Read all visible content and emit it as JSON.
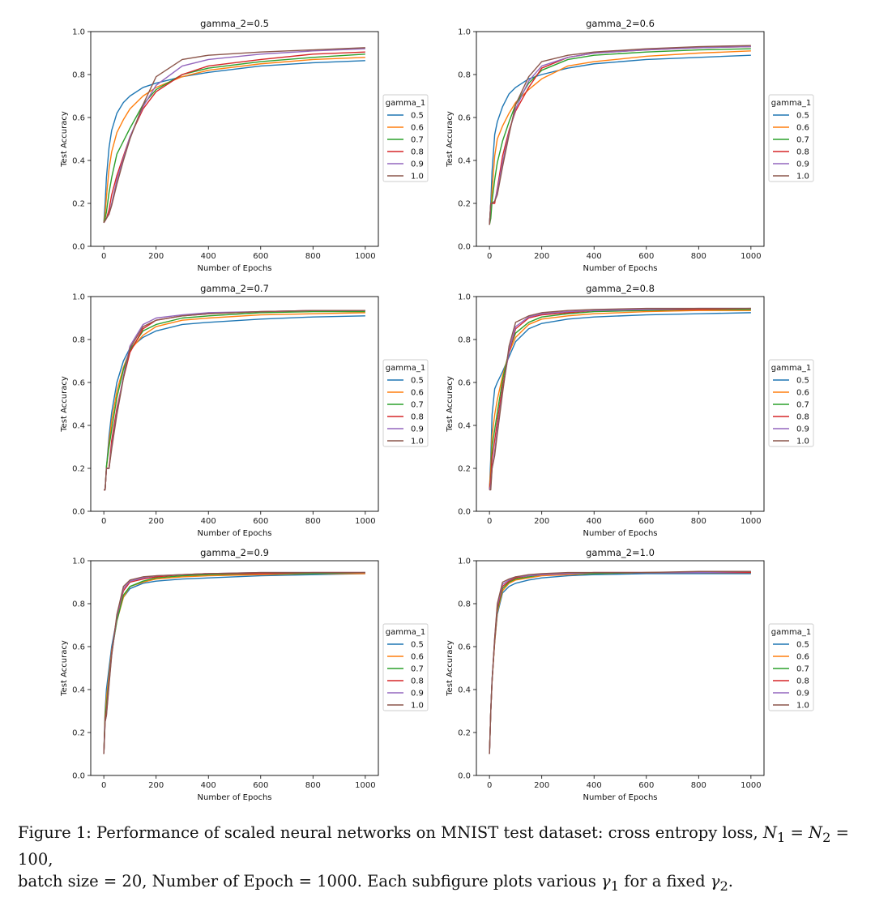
{
  "figure": {
    "legend_title": "gamma_1",
    "xlabel": "Number of Epochs",
    "ylabel": "Test Accuracy",
    "colors": [
      "#1f77b4",
      "#ff7f0e",
      "#2ca02c",
      "#d62728",
      "#9467bd",
      "#8c564b"
    ]
  },
  "caption": {
    "p1": "Figure 1: Performance of scaled neural networks on MNIST test dataset: cross entropy loss, ",
    "m1": "N",
    "s1": "1",
    "p2": " = ",
    "m2": "N",
    "s2": "2",
    "p3": " = 100,",
    "p4": "batch size = 20, Number of Epoch = 1000. Each subfigure plots various ",
    "m3": "γ",
    "s3": "1",
    "p5": " for a fixed ",
    "m4": "γ",
    "s4": "2",
    "p6": "."
  },
  "chart_data": [
    {
      "type": "line",
      "title": "gamma_2=0.5",
      "xlabel": "Number of Epochs",
      "ylabel": "Test Accuracy",
      "xlim": [
        -50,
        1050
      ],
      "ylim": [
        0,
        1
      ],
      "xticks": [
        0,
        200,
        400,
        600,
        800,
        1000
      ],
      "yticks": [
        0.0,
        0.2,
        0.4,
        0.6,
        0.8,
        1.0
      ],
      "legend": {
        "title": "gamma_1",
        "position": "right-outside"
      },
      "x": [
        0,
        5,
        10,
        20,
        30,
        50,
        75,
        100,
        150,
        200,
        300,
        400,
        600,
        800,
        1000
      ],
      "series": [
        {
          "name": "0.5",
          "values": [
            0.11,
            0.2,
            0.32,
            0.46,
            0.54,
            0.62,
            0.67,
            0.7,
            0.74,
            0.76,
            0.79,
            0.81,
            0.84,
            0.855,
            0.865
          ]
        },
        {
          "name": "0.6",
          "values": [
            0.11,
            0.15,
            0.23,
            0.36,
            0.44,
            0.53,
            0.59,
            0.64,
            0.7,
            0.74,
            0.79,
            0.82,
            0.85,
            0.87,
            0.88
          ]
        },
        {
          "name": "0.7",
          "values": [
            0.11,
            0.13,
            0.16,
            0.25,
            0.32,
            0.43,
            0.49,
            0.55,
            0.66,
            0.73,
            0.8,
            0.83,
            0.86,
            0.88,
            0.895
          ]
        },
        {
          "name": "0.8",
          "values": [
            0.11,
            0.12,
            0.13,
            0.17,
            0.24,
            0.33,
            0.42,
            0.51,
            0.64,
            0.72,
            0.8,
            0.84,
            0.87,
            0.895,
            0.905
          ]
        },
        {
          "name": "0.9",
          "values": [
            0.11,
            0.12,
            0.13,
            0.15,
            0.2,
            0.31,
            0.41,
            0.51,
            0.65,
            0.75,
            0.84,
            0.87,
            0.895,
            0.91,
            0.92
          ]
        },
        {
          "name": "1.0",
          "values": [
            0.11,
            0.12,
            0.13,
            0.15,
            0.19,
            0.29,
            0.4,
            0.5,
            0.66,
            0.79,
            0.87,
            0.89,
            0.905,
            0.915,
            0.925
          ]
        }
      ]
    },
    {
      "type": "line",
      "title": "gamma_2=0.6",
      "xlabel": "Number of Epochs",
      "ylabel": "Test Accuracy",
      "xlim": [
        -50,
        1050
      ],
      "ylim": [
        0,
        1
      ],
      "xticks": [
        0,
        200,
        400,
        600,
        800,
        1000
      ],
      "yticks": [
        0.0,
        0.2,
        0.4,
        0.6,
        0.8,
        1.0
      ],
      "legend": {
        "title": "gamma_1",
        "position": "right-outside"
      },
      "x": [
        0,
        5,
        10,
        20,
        30,
        50,
        75,
        100,
        150,
        200,
        300,
        400,
        600,
        800,
        1000
      ],
      "series": [
        {
          "name": "0.5",
          "values": [
            0.1,
            0.2,
            0.35,
            0.52,
            0.58,
            0.65,
            0.71,
            0.74,
            0.78,
            0.8,
            0.83,
            0.85,
            0.87,
            0.88,
            0.89
          ]
        },
        {
          "name": "0.6",
          "values": [
            0.1,
            0.15,
            0.26,
            0.42,
            0.5,
            0.56,
            0.62,
            0.67,
            0.73,
            0.78,
            0.84,
            0.86,
            0.885,
            0.9,
            0.91
          ]
        },
        {
          "name": "0.7",
          "values": [
            0.1,
            0.13,
            0.21,
            0.31,
            0.39,
            0.49,
            0.58,
            0.66,
            0.76,
            0.82,
            0.87,
            0.89,
            0.905,
            0.915,
            0.92
          ]
        },
        {
          "name": "0.8",
          "values": [
            0.1,
            0.2,
            0.2,
            0.2,
            0.27,
            0.42,
            0.54,
            0.63,
            0.74,
            0.83,
            0.88,
            0.9,
            0.915,
            0.925,
            0.93
          ]
        },
        {
          "name": "0.9",
          "values": [
            0.1,
            0.2,
            0.2,
            0.21,
            0.26,
            0.39,
            0.53,
            0.64,
            0.77,
            0.84,
            0.88,
            0.9,
            0.915,
            0.925,
            0.93
          ]
        },
        {
          "name": "1.0",
          "values": [
            0.1,
            0.2,
            0.2,
            0.21,
            0.24,
            0.37,
            0.52,
            0.66,
            0.79,
            0.86,
            0.89,
            0.905,
            0.92,
            0.93,
            0.935
          ]
        }
      ]
    },
    {
      "type": "line",
      "title": "gamma_2=0.7",
      "xlabel": "Number of Epochs",
      "ylabel": "Test Accuracy",
      "xlim": [
        -50,
        1050
      ],
      "ylim": [
        0,
        1
      ],
      "xticks": [
        0,
        200,
        400,
        600,
        800,
        1000
      ],
      "yticks": [
        0.0,
        0.2,
        0.4,
        0.6,
        0.8,
        1.0
      ],
      "legend": {
        "title": "gamma_1",
        "position": "right-outside"
      },
      "x": [
        0,
        5,
        10,
        20,
        30,
        50,
        75,
        100,
        150,
        200,
        300,
        400,
        600,
        800,
        1000
      ],
      "series": [
        {
          "name": "0.5",
          "values": [
            0.1,
            0.1,
            0.2,
            0.35,
            0.46,
            0.6,
            0.7,
            0.76,
            0.81,
            0.84,
            0.87,
            0.88,
            0.895,
            0.905,
            0.91
          ]
        },
        {
          "name": "0.6",
          "values": [
            0.1,
            0.1,
            0.2,
            0.32,
            0.42,
            0.56,
            0.67,
            0.75,
            0.82,
            0.86,
            0.89,
            0.9,
            0.915,
            0.92,
            0.925
          ]
        },
        {
          "name": "0.7",
          "values": [
            0.1,
            0.1,
            0.21,
            0.3,
            0.38,
            0.53,
            0.66,
            0.75,
            0.84,
            0.87,
            0.9,
            0.91,
            0.925,
            0.93,
            0.93
          ]
        },
        {
          "name": "0.8",
          "values": [
            0.1,
            0.1,
            0.2,
            0.2,
            0.33,
            0.48,
            0.62,
            0.74,
            0.85,
            0.89,
            0.91,
            0.92,
            0.93,
            0.935,
            0.935
          ]
        },
        {
          "name": "0.9",
          "values": [
            0.1,
            0.1,
            0.2,
            0.2,
            0.3,
            0.46,
            0.63,
            0.77,
            0.87,
            0.9,
            0.915,
            0.925,
            0.93,
            0.935,
            0.935
          ]
        },
        {
          "name": "1.0",
          "values": [
            0.1,
            0.1,
            0.2,
            0.2,
            0.29,
            0.45,
            0.62,
            0.76,
            0.86,
            0.89,
            0.91,
            0.92,
            0.93,
            0.935,
            0.935
          ]
        }
      ]
    },
    {
      "type": "line",
      "title": "gamma_2=0.8",
      "xlabel": "Number of Epochs",
      "ylabel": "Test Accuracy",
      "xlim": [
        -50,
        1050
      ],
      "ylim": [
        0,
        1
      ],
      "xticks": [
        0,
        200,
        400,
        600,
        800,
        1000
      ],
      "yticks": [
        0.0,
        0.2,
        0.4,
        0.6,
        0.8,
        1.0
      ],
      "legend": {
        "title": "gamma_1",
        "position": "right-outside"
      },
      "x": [
        0,
        5,
        10,
        20,
        30,
        50,
        75,
        100,
        150,
        200,
        300,
        400,
        600,
        800,
        1000
      ],
      "series": [
        {
          "name": "0.5",
          "values": [
            0.1,
            0.25,
            0.45,
            0.57,
            0.6,
            0.65,
            0.72,
            0.79,
            0.85,
            0.875,
            0.895,
            0.905,
            0.915,
            0.92,
            0.925
          ]
        },
        {
          "name": "0.6",
          "values": [
            0.1,
            0.2,
            0.35,
            0.45,
            0.52,
            0.63,
            0.74,
            0.81,
            0.87,
            0.895,
            0.91,
            0.92,
            0.93,
            0.935,
            0.935
          ]
        },
        {
          "name": "0.7",
          "values": [
            0.1,
            0.15,
            0.3,
            0.38,
            0.46,
            0.61,
            0.75,
            0.83,
            0.88,
            0.905,
            0.92,
            0.93,
            0.935,
            0.94,
            0.94
          ]
        },
        {
          "name": "0.8",
          "values": [
            0.1,
            0.15,
            0.25,
            0.33,
            0.42,
            0.58,
            0.74,
            0.85,
            0.9,
            0.915,
            0.925,
            0.935,
            0.94,
            0.94,
            0.945
          ]
        },
        {
          "name": "0.9",
          "values": [
            0.1,
            0.12,
            0.2,
            0.28,
            0.38,
            0.56,
            0.75,
            0.86,
            0.905,
            0.92,
            0.93,
            0.935,
            0.94,
            0.945,
            0.945
          ]
        },
        {
          "name": "1.0",
          "values": [
            0.1,
            0.1,
            0.2,
            0.26,
            0.36,
            0.55,
            0.77,
            0.88,
            0.91,
            0.925,
            0.935,
            0.94,
            0.945,
            0.945,
            0.945
          ]
        }
      ]
    },
    {
      "type": "line",
      "title": "gamma_2=0.9",
      "xlabel": "Number of Epochs",
      "ylabel": "Test Accuracy",
      "xlim": [
        -50,
        1050
      ],
      "ylim": [
        0,
        1
      ],
      "xticks": [
        0,
        200,
        400,
        600,
        800,
        1000
      ],
      "yticks": [
        0.0,
        0.2,
        0.4,
        0.6,
        0.8,
        1.0
      ],
      "legend": {
        "title": "gamma_1",
        "position": "right-outside"
      },
      "x": [
        0,
        5,
        10,
        20,
        30,
        50,
        75,
        100,
        150,
        200,
        300,
        400,
        600,
        800,
        1000
      ],
      "series": [
        {
          "name": "0.5",
          "values": [
            0.1,
            0.3,
            0.4,
            0.5,
            0.6,
            0.73,
            0.83,
            0.87,
            0.895,
            0.905,
            0.915,
            0.92,
            0.93,
            0.935,
            0.94
          ]
        },
        {
          "name": "0.6",
          "values": [
            0.1,
            0.28,
            0.36,
            0.47,
            0.58,
            0.72,
            0.83,
            0.88,
            0.9,
            0.915,
            0.925,
            0.93,
            0.935,
            0.94,
            0.94
          ]
        },
        {
          "name": "0.7",
          "values": [
            0.1,
            0.27,
            0.33,
            0.45,
            0.57,
            0.72,
            0.84,
            0.88,
            0.905,
            0.92,
            0.93,
            0.935,
            0.94,
            0.94,
            0.945
          ]
        },
        {
          "name": "0.8",
          "values": [
            0.1,
            0.26,
            0.3,
            0.44,
            0.57,
            0.74,
            0.86,
            0.9,
            0.915,
            0.925,
            0.935,
            0.94,
            0.94,
            0.945,
            0.945
          ]
        },
        {
          "name": "0.9",
          "values": [
            0.1,
            0.25,
            0.28,
            0.43,
            0.56,
            0.74,
            0.87,
            0.905,
            0.92,
            0.93,
            0.935,
            0.94,
            0.945,
            0.945,
            0.945
          ]
        },
        {
          "name": "1.0",
          "values": [
            0.1,
            0.25,
            0.28,
            0.42,
            0.56,
            0.75,
            0.88,
            0.91,
            0.925,
            0.93,
            0.935,
            0.94,
            0.945,
            0.945,
            0.945
          ]
        }
      ]
    },
    {
      "type": "line",
      "title": "gamma_2=1.0",
      "xlabel": "Number of Epochs",
      "ylabel": "Test Accuracy",
      "xlim": [
        -50,
        1050
      ],
      "ylim": [
        0,
        1
      ],
      "xticks": [
        0,
        200,
        400,
        600,
        800,
        1000
      ],
      "yticks": [
        0.0,
        0.2,
        0.4,
        0.6,
        0.8,
        1.0
      ],
      "legend": {
        "title": "gamma_1",
        "position": "right-outside"
      },
      "x": [
        0,
        5,
        10,
        20,
        30,
        50,
        75,
        100,
        150,
        200,
        300,
        400,
        600,
        800,
        1000
      ],
      "series": [
        {
          "name": "0.5",
          "values": [
            0.1,
            0.3,
            0.45,
            0.62,
            0.75,
            0.85,
            0.88,
            0.895,
            0.91,
            0.92,
            0.93,
            0.935,
            0.94,
            0.94,
            0.94
          ]
        },
        {
          "name": "0.6",
          "values": [
            0.1,
            0.3,
            0.44,
            0.62,
            0.76,
            0.86,
            0.895,
            0.91,
            0.92,
            0.93,
            0.935,
            0.94,
            0.945,
            0.945,
            0.945
          ]
        },
        {
          "name": "0.7",
          "values": [
            0.1,
            0.3,
            0.44,
            0.63,
            0.77,
            0.87,
            0.9,
            0.915,
            0.925,
            0.935,
            0.94,
            0.94,
            0.945,
            0.945,
            0.945
          ]
        },
        {
          "name": "0.8",
          "values": [
            0.1,
            0.3,
            0.44,
            0.63,
            0.78,
            0.88,
            0.905,
            0.92,
            0.93,
            0.935,
            0.94,
            0.945,
            0.945,
            0.945,
            0.945
          ]
        },
        {
          "name": "0.9",
          "values": [
            0.1,
            0.3,
            0.44,
            0.64,
            0.79,
            0.89,
            0.91,
            0.925,
            0.93,
            0.935,
            0.94,
            0.945,
            0.945,
            0.945,
            0.95
          ]
        },
        {
          "name": "1.0",
          "values": [
            0.1,
            0.3,
            0.44,
            0.64,
            0.8,
            0.9,
            0.915,
            0.925,
            0.935,
            0.94,
            0.945,
            0.945,
            0.945,
            0.95,
            0.95
          ]
        }
      ]
    }
  ]
}
